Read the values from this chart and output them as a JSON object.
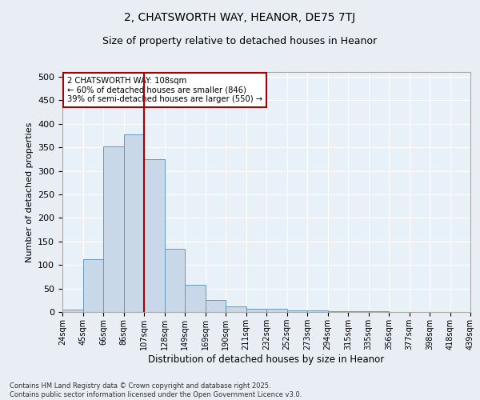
{
  "title_line1": "2, CHATSWORTH WAY, HEANOR, DE75 7TJ",
  "title_line2": "Size of property relative to detached houses in Heanor",
  "xlabel": "Distribution of detached houses by size in Heanor",
  "ylabel": "Number of detached properties",
  "bar_values": [
    5,
    113,
    352,
    378,
    325,
    135,
    57,
    25,
    12,
    7,
    6,
    4,
    3,
    1,
    1,
    1,
    0,
    0,
    0,
    0
  ],
  "categories": [
    "24sqm",
    "45sqm",
    "66sqm",
    "86sqm",
    "107sqm",
    "128sqm",
    "149sqm",
    "169sqm",
    "190sqm",
    "211sqm",
    "232sqm",
    "252sqm",
    "273sqm",
    "294sqm",
    "315sqm",
    "335sqm",
    "356sqm",
    "377sqm",
    "398sqm",
    "418sqm",
    "439sqm"
  ],
  "bar_color": "#c8d8e8",
  "bar_edge_color": "#6699bb",
  "vline_x": 3.5,
  "vline_color": "#aa0000",
  "annotation_title": "2 CHATSWORTH WAY: 108sqm",
  "annotation_line2": "← 60% of detached houses are smaller (846)",
  "annotation_line3": "39% of semi-detached houses are larger (550) →",
  "annotation_box_color": "#aa0000",
  "annotation_bg": "#ffffff",
  "ylim": [
    0,
    510
  ],
  "yticks": [
    0,
    50,
    100,
    150,
    200,
    250,
    300,
    350,
    400,
    450,
    500
  ],
  "footnote1": "Contains HM Land Registry data © Crown copyright and database right 2025.",
  "footnote2": "Contains public sector information licensed under the Open Government Licence v3.0.",
  "bg_color": "#e8eef4",
  "plot_bg_color": "#e8f0f8"
}
